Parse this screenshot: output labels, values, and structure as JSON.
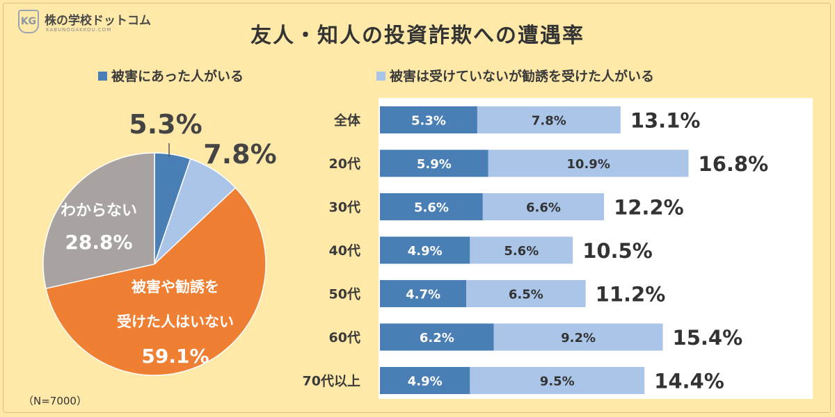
{
  "logo": {
    "mark": "KG",
    "name": "株の学校ドットコム",
    "sub": "KABUNOGAKKOU.COM"
  },
  "title": "友人・知人の投資詐欺への遭遇率",
  "note": "（N=7000）",
  "colors": {
    "victim": "#4a7fb5",
    "solicited": "#aac5e8",
    "none": "#ef7f32",
    "unknown": "#a8a3a0",
    "background": "#ffe9a8"
  },
  "chart_data": [
    {
      "type": "pie",
      "slices": [
        {
          "label": "",
          "value": 5.3,
          "value_label": "5.3%"
        },
        {
          "label": "",
          "value": 7.8,
          "value_label": "7.8%"
        },
        {
          "label": "被害や勧誘を受けた人はいない",
          "label_lines": [
            "被害や勧誘を",
            "受けた人はいない"
          ],
          "value": 59.1,
          "value_label": "59.1%"
        },
        {
          "label": "わからない",
          "label_lines": [
            "わからない"
          ],
          "value": 28.8,
          "value_label": "28.8%"
        }
      ]
    },
    {
      "type": "bar",
      "orientation": "horizontal",
      "stacked": true,
      "categories": [
        "全体",
        "20代",
        "30代",
        "40代",
        "50代",
        "60代",
        "70代以上"
      ],
      "series": [
        {
          "name": "被害にあった人がいる",
          "values": [
            5.3,
            5.9,
            5.6,
            4.9,
            4.7,
            6.2,
            4.9
          ],
          "labels": [
            "5.3%",
            "5.9%",
            "5.6%",
            "4.9%",
            "4.7%",
            "6.2%",
            "4.9%"
          ]
        },
        {
          "name": "被害は受けていないが勧誘を受けた人がいる",
          "values": [
            7.8,
            10.9,
            6.6,
            5.6,
            6.5,
            9.2,
            9.5
          ],
          "labels": [
            "7.8%",
            "10.9%",
            "6.6%",
            "5.6%",
            "6.5%",
            "9.2%",
            "9.5%"
          ]
        }
      ],
      "totals": [
        "13.1%",
        "16.8%",
        "12.2%",
        "10.5%",
        "11.2%",
        "15.4%",
        "14.4%"
      ]
    }
  ]
}
